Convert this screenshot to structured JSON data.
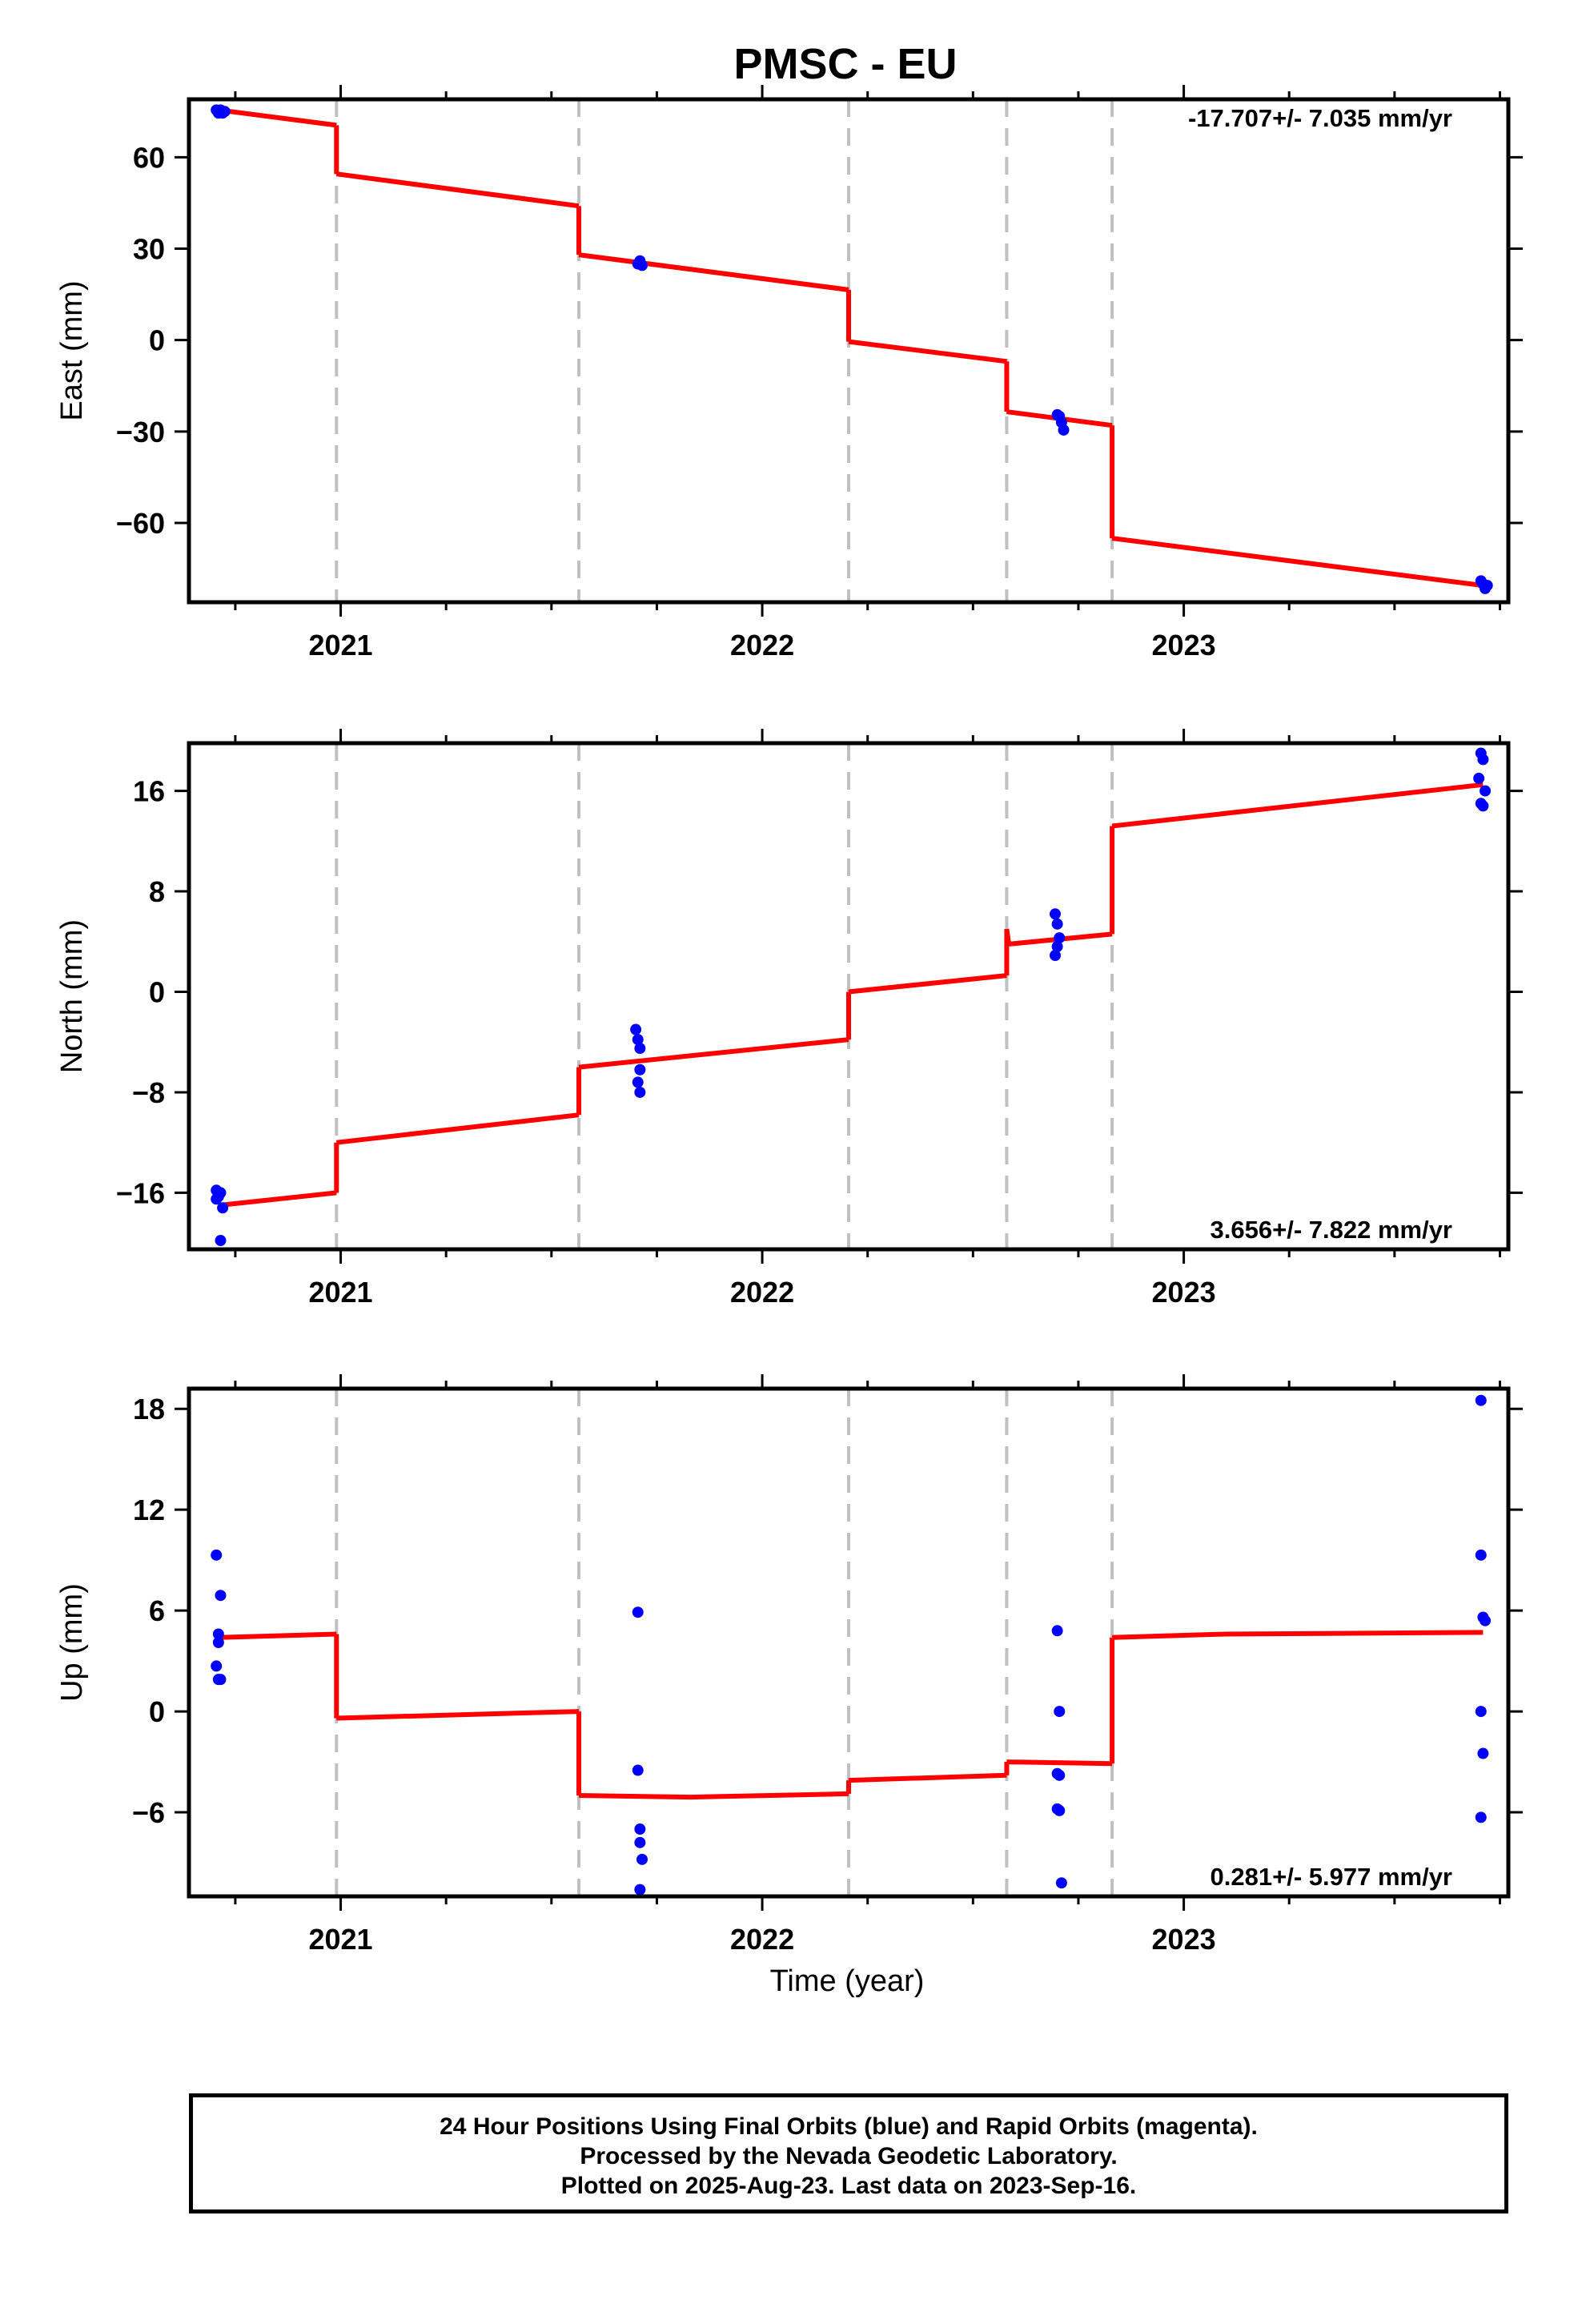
{
  "colors": {
    "model": "#ff0000",
    "points": "#0000ff",
    "offsets": "#c0c0c0",
    "frame": "#000000"
  },
  "chart_data": {
    "title": "PMSC - EU",
    "xlabel": "Time (year)",
    "xlim": [
      2020.64,
      2023.77
    ],
    "xticks": [
      2021,
      2022,
      2023
    ],
    "offsets": [
      2020.99,
      2021.565,
      2022.205,
      2022.58,
      2022.83
    ],
    "panels": [
      {
        "type": "scatter",
        "ylabel": "East (mm)",
        "ylim": [
          -86,
          79
        ],
        "yticks": [
          -60,
          -30,
          0,
          30,
          60
        ],
        "rate": "-17.707+/- 7.035 mm/yr",
        "rate_position": "top-right",
        "series": [
          {
            "kind": "model",
            "segments": [
              [
                [
                  2020.71,
                  75.5
                ],
                [
                  2020.99,
                  70.5
                ]
              ],
              [
                [
                  2020.99,
                  54.5
                ],
                [
                  2021.565,
                  44
                ]
              ],
              [
                [
                  2021.565,
                  28
                ],
                [
                  2022.205,
                  16.5
                ]
              ],
              [
                [
                  2022.205,
                  -0.5
                ],
                [
                  2022.58,
                  -7
                ]
              ],
              [
                [
                  2022.58,
                  -23.5
                ],
                [
                  2022.83,
                  -28
                ]
              ],
              [
                [
                  2022.83,
                  -65
                ],
                [
                  2023.71,
                  -80.5
                ]
              ]
            ]
          },
          {
            "kind": "points",
            "x": [
              2020.705,
              2020.71,
              2020.715,
              2020.72,
              2020.725,
              2021.705,
              2021.71,
              2021.715,
              2022.7,
              2022.705,
              2022.71,
              2022.715,
              2023.705,
              2023.71,
              2023.715,
              2023.72
            ],
            "y": [
              75.5,
              74.5,
              75.5,
              74.5,
              75,
              25,
              26,
              24.5,
              -24.5,
              -25,
              -27,
              -29.5,
              -79,
              -80,
              -81.5,
              -80.5
            ]
          }
        ]
      },
      {
        "type": "scatter",
        "ylabel": "North (mm)",
        "ylim": [
          -20.5,
          19.8
        ],
        "yticks": [
          -16,
          -8,
          0,
          8,
          16
        ],
        "rate": "3.656+/- 7.822 mm/yr",
        "rate_position": "bottom-right",
        "series": [
          {
            "kind": "model",
            "segments": [
              [
                [
                  2020.71,
                  -17
                ],
                [
                  2020.99,
                  -16
                ]
              ],
              [
                [
                  2020.99,
                  -12
                ],
                [
                  2021.565,
                  -9.8
                ]
              ],
              [
                [
                  2021.565,
                  -6
                ],
                [
                  2022.205,
                  -3.8
                ]
              ],
              [
                [
                  2022.205,
                  0
                ],
                [
                  2022.58,
                  1.3
                ]
              ],
              [
                [
                  2022.58,
                  5
                ],
                [
                  2022.585,
                  3.8
                ]
              ],
              [
                [
                  2022.585,
                  3.8
                ],
                [
                  2022.83,
                  4.6
                ]
              ],
              [
                [
                  2022.83,
                  13.2
                ],
                [
                  2023.71,
                  16.5
                ]
              ]
            ]
          },
          {
            "kind": "points",
            "x": [
              2020.705,
              2020.71,
              2020.715,
              2020.72,
              2020.715,
              2020.705,
              2021.7,
              2021.705,
              2021.71,
              2021.71,
              2021.705,
              2021.71,
              2022.695,
              2022.7,
              2022.705,
              2022.7,
              2022.695,
              2023.7,
              2023.705,
              2023.71,
              2023.715,
              2023.705,
              2023.71
            ],
            "y": [
              -15.8,
              -16.3,
              -16.0,
              -17.2,
              -19.8,
              -16.5,
              -3.0,
              -3.8,
              -4.5,
              -6.2,
              -7.2,
              -8.0,
              6.2,
              5.4,
              4.3,
              3.6,
              2.9,
              17.0,
              19.0,
              18.5,
              16.0,
              15.0,
              14.8
            ]
          }
        ]
      },
      {
        "type": "scatter",
        "ylabel": "Up (mm)",
        "ylim": [
          -11,
          19.2
        ],
        "yticks": [
          -6,
          0,
          6,
          12,
          18
        ],
        "rate": "0.281+/- 5.977 mm/yr",
        "rate_position": "bottom-right",
        "series": [
          {
            "kind": "model",
            "segments": [
              [
                [
                  2020.71,
                  4.4
                ],
                [
                  2020.99,
                  4.6
                ]
              ],
              [
                [
                  2020.99,
                  -0.4
                ],
                [
                  2021.565,
                  0
                ]
              ],
              [
                [
                  2021.565,
                  -5
                ],
                [
                  2021.83,
                  -5.1
                ],
                [
                  2022.205,
                  -4.9
                ]
              ],
              [
                [
                  2022.205,
                  -4.1
                ],
                [
                  2022.58,
                  -3.8
                ]
              ],
              [
                [
                  2022.58,
                  -3
                ],
                [
                  2022.83,
                  -3.1
                ]
              ],
              [
                [
                  2022.83,
                  4.4
                ],
                [
                  2023.1,
                  4.6
                ],
                [
                  2023.71,
                  4.7
                ]
              ]
            ]
          },
          {
            "kind": "points",
            "x": [
              2020.705,
              2020.715,
              2020.71,
              2020.71,
              2020.705,
              2020.71,
              2020.715,
              2021.705,
              2021.705,
              2021.71,
              2021.71,
              2021.715,
              2021.71,
              2022.7,
              2022.705,
              2022.7,
              2022.705,
              2022.7,
              2022.705,
              2022.71,
              2023.705,
              2023.705,
              2023.71,
              2023.715,
              2023.705,
              2023.71,
              2023.705
            ],
            "y": [
              9.3,
              6.9,
              4.6,
              4.1,
              2.7,
              1.9,
              1.9,
              5.9,
              -3.5,
              -7.0,
              -7.8,
              -8.8,
              -10.6,
              4.8,
              0,
              -3.7,
              -3.8,
              -5.8,
              -5.9,
              -10.2,
              18.5,
              9.3,
              5.6,
              5.4,
              0,
              -2.5,
              -6.3
            ]
          }
        ]
      }
    ]
  },
  "footer": {
    "line1": "24 Hour Positions Using Final Orbits (blue) and Rapid Orbits (magenta).",
    "line2": "Processed by the Nevada Geodetic Laboratory.",
    "line3": "Plotted on 2025-Aug-23. Last data on 2023-Sep-16."
  }
}
